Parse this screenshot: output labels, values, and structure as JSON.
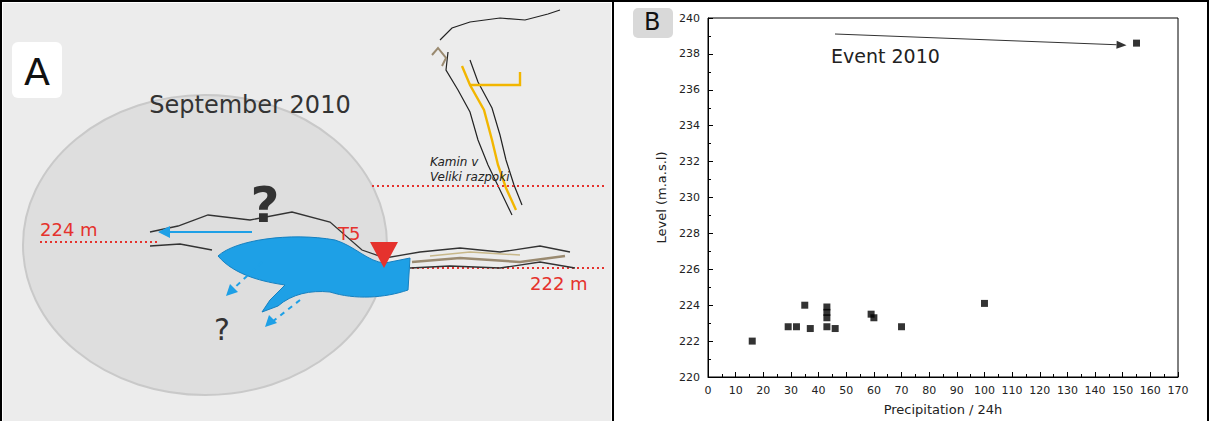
{
  "panel_a": {
    "letter": "A",
    "title": "September 2010",
    "question_marks": [
      "?",
      "?"
    ],
    "levels": [
      {
        "label": "224 m"
      },
      {
        "label": "222 m"
      }
    ],
    "station": "T5",
    "place": [
      "Kamin v",
      "Veliki razpoki"
    ]
  },
  "panel_b": {
    "letter": "B"
  },
  "chart_data": {
    "type": "scatter",
    "x_label": "Precipitation / 24h",
    "y_label": "Level (m.a.s.l)",
    "x": [
      16,
      29,
      32,
      35,
      37,
      43,
      43,
      43,
      43,
      46,
      59,
      60,
      70,
      100,
      155
    ],
    "values": [
      222.0,
      222.8,
      222.8,
      224.0,
      222.7,
      223.9,
      223.6,
      223.3,
      222.8,
      222.7,
      223.5,
      223.3,
      222.8,
      224.1,
      238.6
    ],
    "color": "#000000",
    "marker": "square",
    "xlim": [
      0,
      170
    ],
    "xticks": [
      0,
      10,
      20,
      30,
      40,
      50,
      60,
      70,
      80,
      90,
      100,
      110,
      120,
      130,
      140,
      150,
      160,
      170
    ],
    "ylim": [
      220,
      240
    ],
    "yticks": [
      220,
      222,
      224,
      226,
      228,
      230,
      232,
      234,
      236,
      238,
      240
    ],
    "grid": false,
    "annotations": [
      {
        "text": "Event 2010"
      }
    ]
  }
}
